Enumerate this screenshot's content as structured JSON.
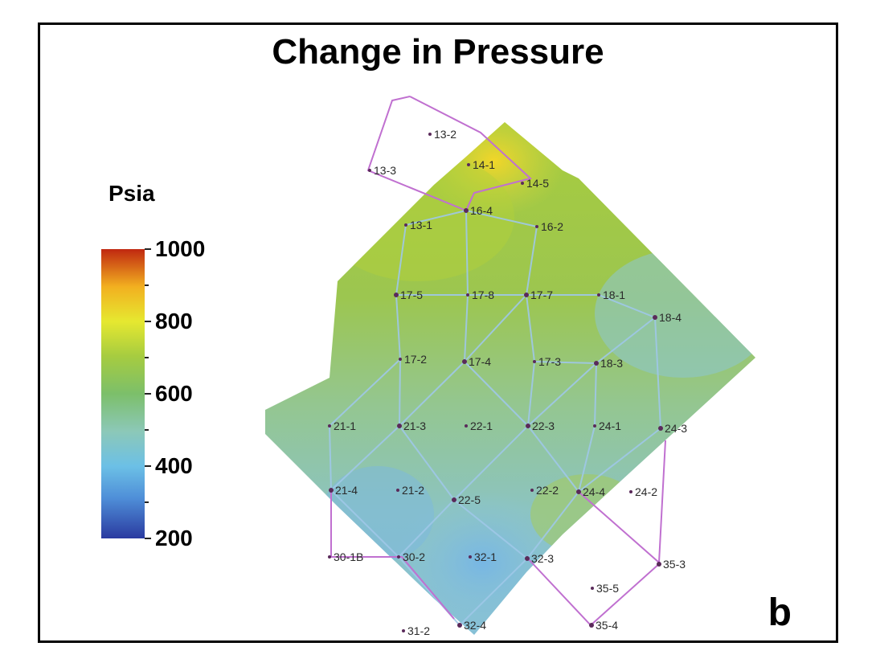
{
  "title": "Change in Pressure",
  "unit_label": "Psia",
  "panel_label": "b",
  "colorbar": {
    "min": 200,
    "max": 1000,
    "labels": [
      "1000",
      "800",
      "600",
      "400",
      "200"
    ],
    "minor_ticks": [
      300,
      500,
      700,
      900
    ]
  },
  "colors": {
    "boundary": "#c070d0",
    "gridlines": "#9fc8e8",
    "well": "#5a2a5a"
  },
  "wells": [
    {
      "label": "13-2",
      "row": 0
    },
    {
      "label": "13-3",
      "row": 0
    },
    {
      "label": "14-1",
      "row": 0
    },
    {
      "label": "14-5",
      "row": 0
    },
    {
      "label": "16-4",
      "row": 1
    },
    {
      "label": "13-1",
      "row": 1
    },
    {
      "label": "16-2",
      "row": 1
    },
    {
      "label": "17-5",
      "row": 2
    },
    {
      "label": "17-8",
      "row": 2
    },
    {
      "label": "17-7",
      "row": 2
    },
    {
      "label": "18-1",
      "row": 2
    },
    {
      "label": "18-4",
      "row": 2
    },
    {
      "label": "17-2",
      "row": 3
    },
    {
      "label": "17-4",
      "row": 3
    },
    {
      "label": "17-3",
      "row": 3
    },
    {
      "label": "18-3",
      "row": 3
    },
    {
      "label": "21-1",
      "row": 4
    },
    {
      "label": "21-3",
      "row": 4
    },
    {
      "label": "22-1",
      "row": 4
    },
    {
      "label": "22-3",
      "row": 4
    },
    {
      "label": "24-1",
      "row": 4
    },
    {
      "label": "24-3",
      "row": 4
    },
    {
      "label": "21-4",
      "row": 5
    },
    {
      "label": "21-2",
      "row": 5
    },
    {
      "label": "22-5",
      "row": 5
    },
    {
      "label": "22-2",
      "row": 5
    },
    {
      "label": "24-4",
      "row": 5
    },
    {
      "label": "24-2",
      "row": 5
    },
    {
      "label": "30-1B",
      "row": 6
    },
    {
      "label": "30-2",
      "row": 6
    },
    {
      "label": "32-1",
      "row": 6
    },
    {
      "label": "32-3",
      "row": 6
    },
    {
      "label": "35-3",
      "row": 6
    },
    {
      "label": "35-5",
      "row": 7
    },
    {
      "label": "31-2",
      "row": 7
    },
    {
      "label": "32-4",
      "row": 7
    },
    {
      "label": "35-4",
      "row": 7
    }
  ]
}
